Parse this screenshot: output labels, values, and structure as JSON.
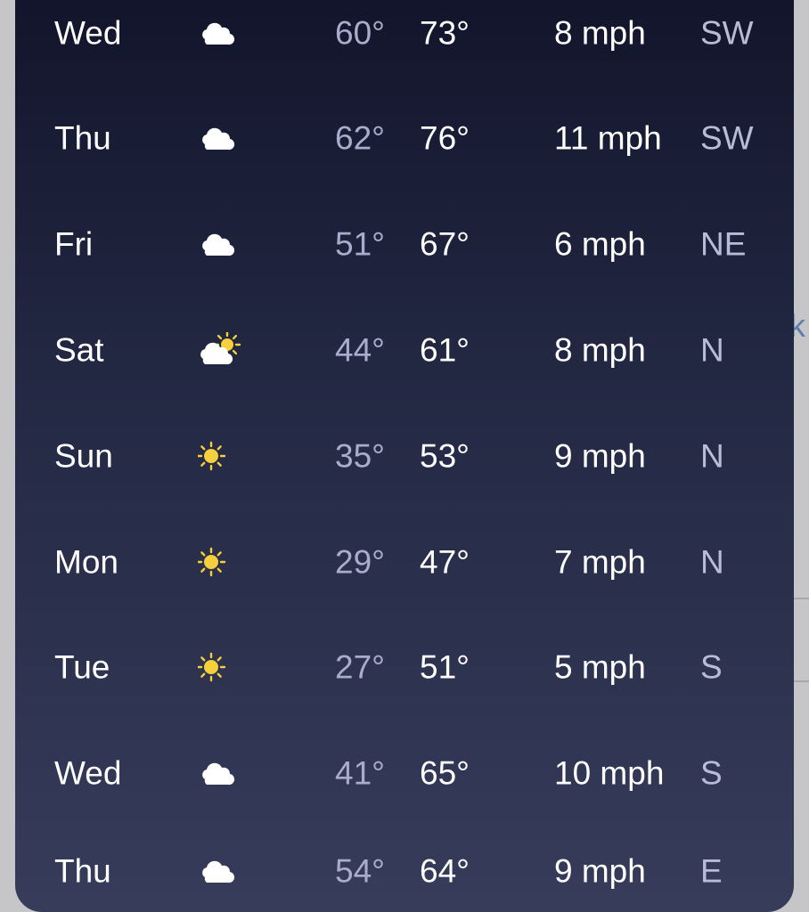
{
  "background": {
    "partial_text": "ck"
  },
  "forecast": [
    {
      "day": "Wed",
      "icon": "cloud-icon",
      "low": "60°",
      "high": "73°",
      "wind": "8 mph",
      "dir": "SW"
    },
    {
      "day": "Thu",
      "icon": "cloud-icon",
      "low": "62°",
      "high": "76°",
      "wind": "11 mph",
      "dir": "SW"
    },
    {
      "day": "Fri",
      "icon": "cloud-icon",
      "low": "51°",
      "high": "67°",
      "wind": "6 mph",
      "dir": "NE"
    },
    {
      "day": "Sat",
      "icon": "partly-cloudy-icon",
      "low": "44°",
      "high": "61°",
      "wind": "8 mph",
      "dir": "N"
    },
    {
      "day": "Sun",
      "icon": "sun-icon",
      "low": "35°",
      "high": "53°",
      "wind": "9 mph",
      "dir": "N"
    },
    {
      "day": "Mon",
      "icon": "sun-icon",
      "low": "29°",
      "high": "47°",
      "wind": "7 mph",
      "dir": "N"
    },
    {
      "day": "Tue",
      "icon": "sun-icon",
      "low": "27°",
      "high": "51°",
      "wind": "5 mph",
      "dir": "S"
    },
    {
      "day": "Wed",
      "icon": "cloud-icon",
      "low": "41°",
      "high": "65°",
      "wind": "10 mph",
      "dir": "S"
    },
    {
      "day": "Thu",
      "icon": "cloud-icon",
      "low": "54°",
      "high": "64°",
      "wind": "9 mph",
      "dir": "E"
    }
  ],
  "colors": {
    "sun": "#f5cf3c",
    "cloud": "#ffffff",
    "low_temp": "#a9adcb"
  }
}
